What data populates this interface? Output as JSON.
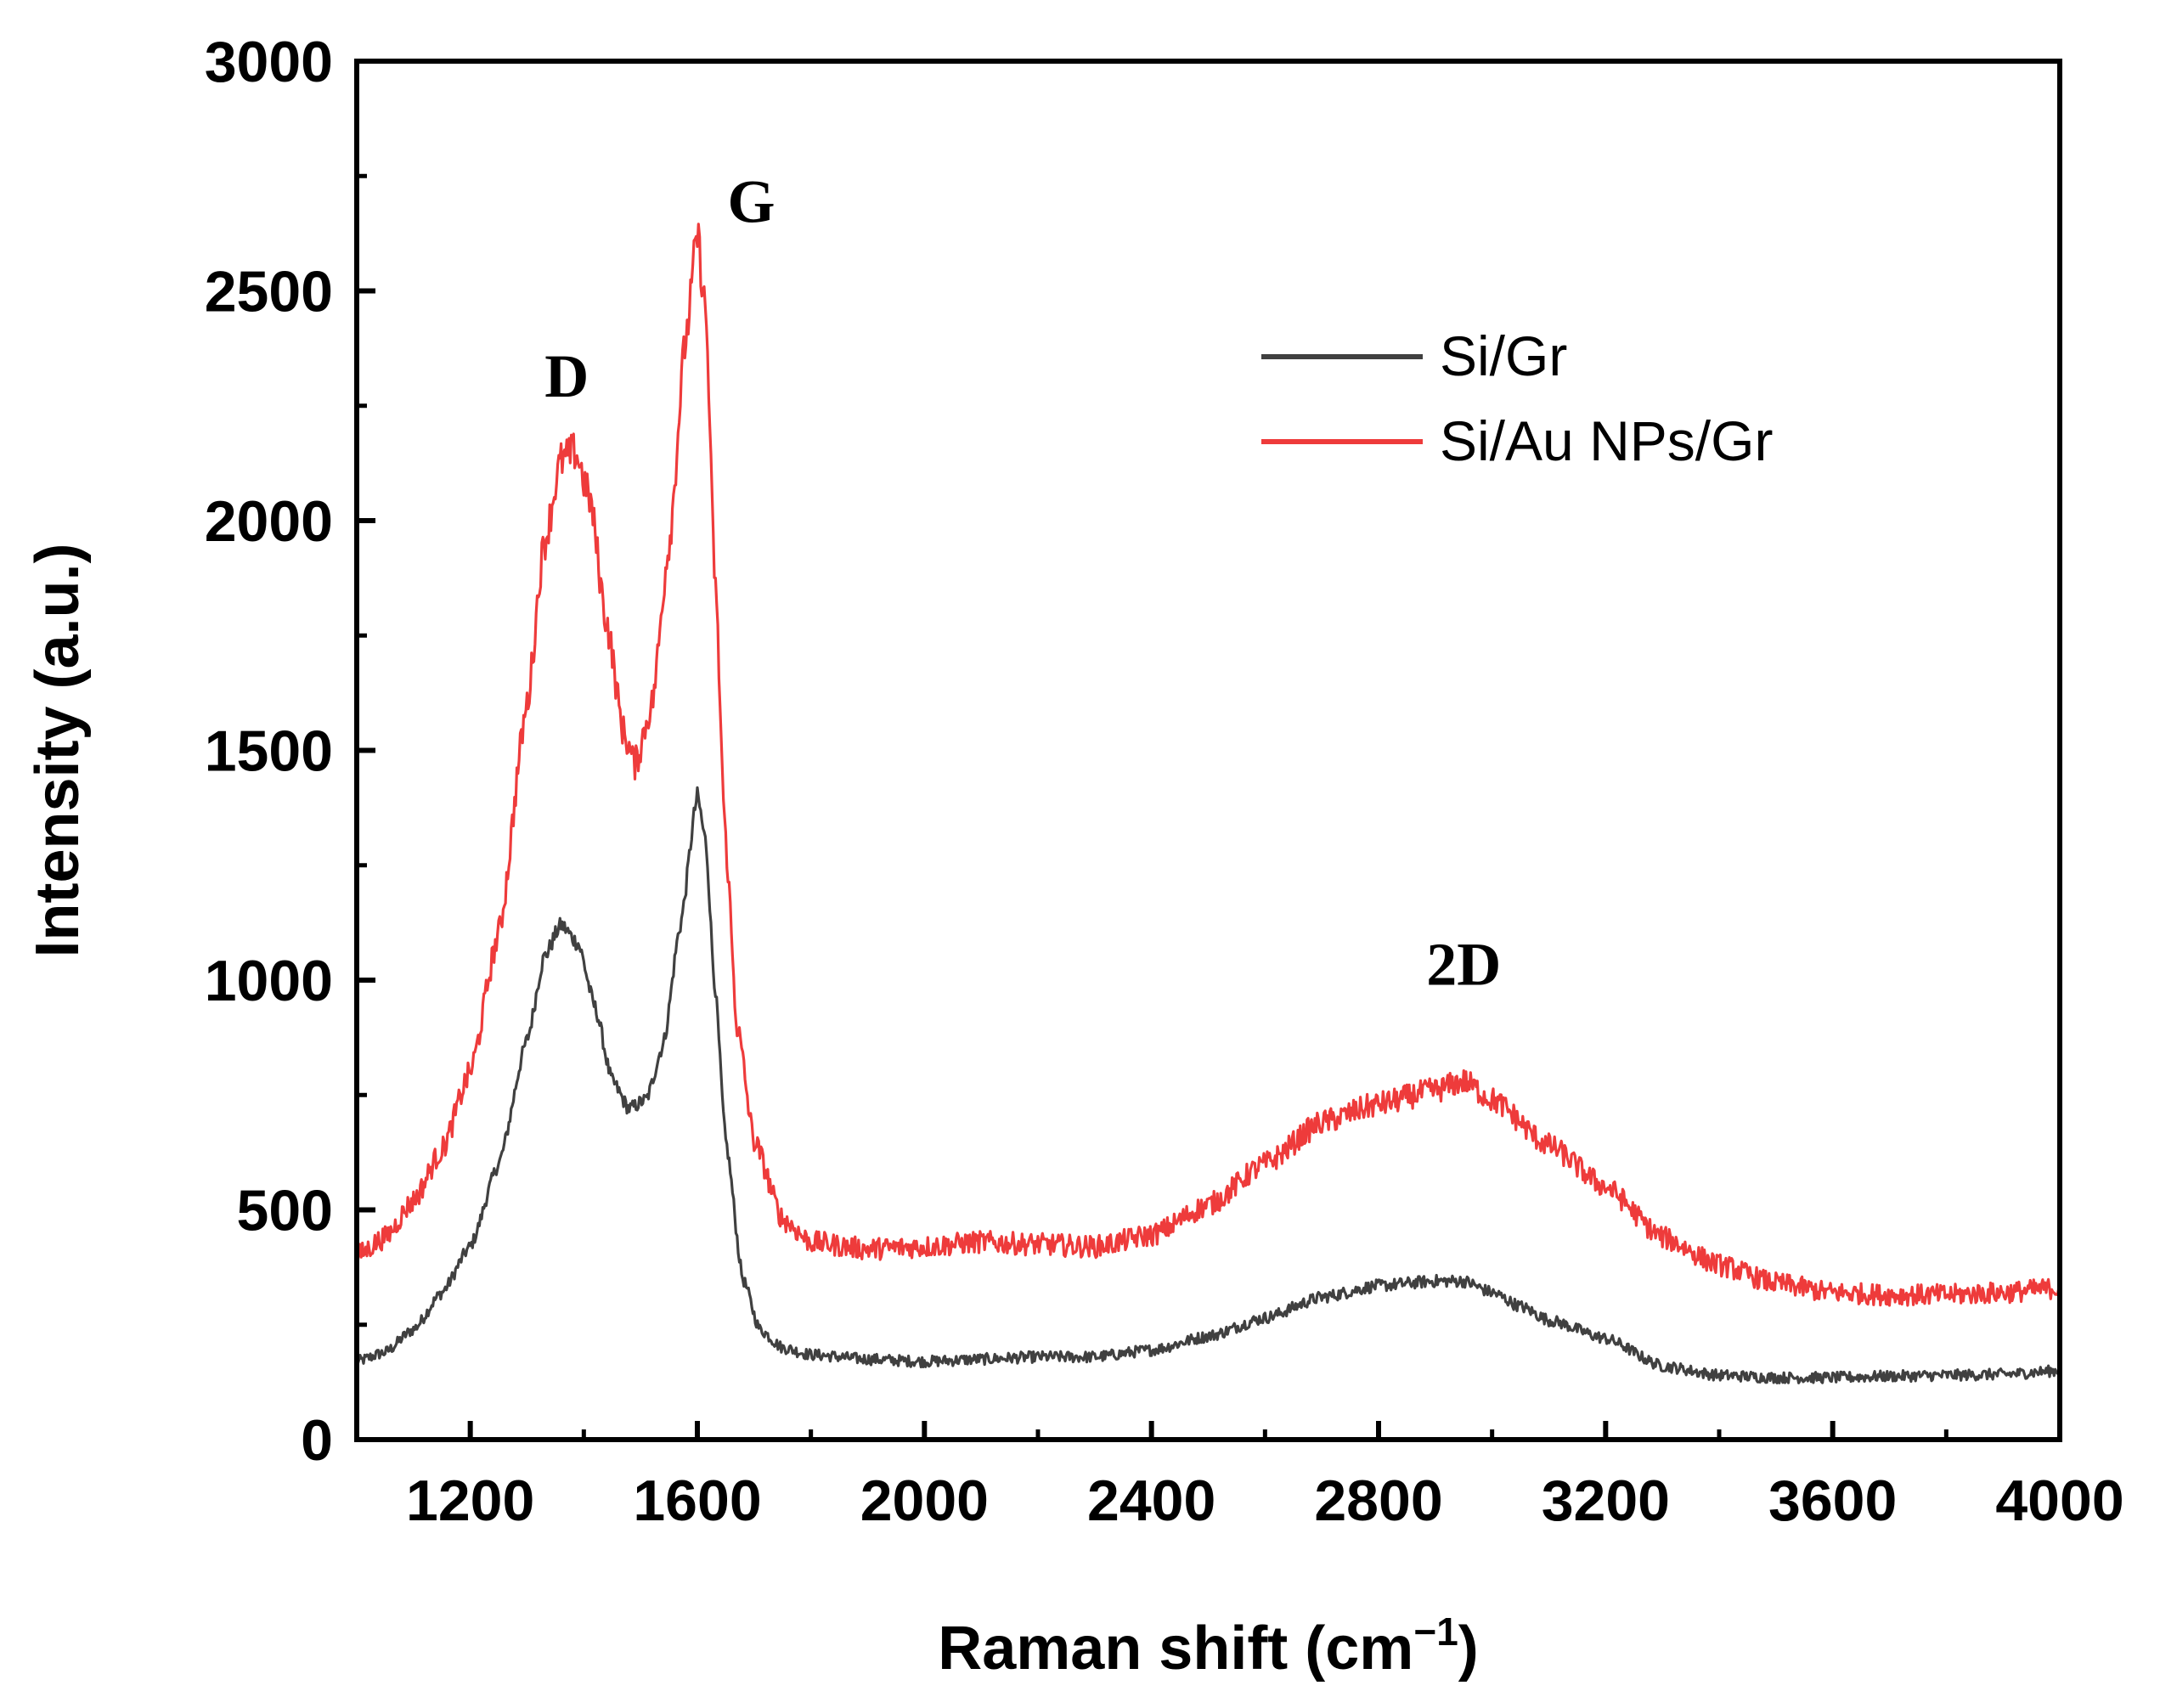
{
  "chart_data": {
    "type": "line",
    "title": "",
    "xlabel": "Raman shift (cm",
    "xlabel_sup": "−1",
    "xlabel_close": ")",
    "ylabel": "Intensity (a.u.)",
    "xlim": [
      1000,
      4000
    ],
    "ylim": [
      0,
      3000
    ],
    "x_ticks": [
      1200,
      1600,
      2000,
      2400,
      2800,
      3200,
      3600,
      4000
    ],
    "y_ticks": [
      0,
      500,
      1000,
      1500,
      2000,
      2500,
      3000
    ],
    "grid": false,
    "legend_position": "top-right",
    "series": [
      {
        "name": "Si/Gr",
        "color": "#404040",
        "points": [
          [
            1000,
            170
          ],
          [
            1050,
            190
          ],
          [
            1100,
            240
          ],
          [
            1150,
            320
          ],
          [
            1200,
            420
          ],
          [
            1250,
            600
          ],
          [
            1300,
            870
          ],
          [
            1330,
            1050
          ],
          [
            1360,
            1120
          ],
          [
            1390,
            1080
          ],
          [
            1420,
            940
          ],
          [
            1450,
            780
          ],
          [
            1480,
            720
          ],
          [
            1510,
            740
          ],
          [
            1540,
            860
          ],
          [
            1570,
            1120
          ],
          [
            1600,
            1400
          ],
          [
            1615,
            1300
          ],
          [
            1630,
            1000
          ],
          [
            1650,
            650
          ],
          [
            1680,
            350
          ],
          [
            1710,
            240
          ],
          [
            1750,
            200
          ],
          [
            1800,
            185
          ],
          [
            1900,
            175
          ],
          [
            2000,
            170
          ],
          [
            2100,
            175
          ],
          [
            2200,
            180
          ],
          [
            2300,
            180
          ],
          [
            2400,
            195
          ],
          [
            2500,
            225
          ],
          [
            2600,
            265
          ],
          [
            2700,
            310
          ],
          [
            2800,
            335
          ],
          [
            2900,
            345
          ],
          [
            2950,
            345
          ],
          [
            3000,
            320
          ],
          [
            3050,
            290
          ],
          [
            3100,
            260
          ],
          [
            3200,
            220
          ],
          [
            3300,
            160
          ],
          [
            3400,
            140
          ],
          [
            3500,
            135
          ],
          [
            3600,
            135
          ],
          [
            3700,
            138
          ],
          [
            3800,
            140
          ],
          [
            3900,
            142
          ],
          [
            4000,
            150
          ]
        ]
      },
      {
        "name": "Si/Au NPs/Gr",
        "color": "#ee3b3b",
        "points": [
          [
            1000,
            400
          ],
          [
            1050,
            440
          ],
          [
            1100,
            520
          ],
          [
            1150,
            630
          ],
          [
            1200,
            800
          ],
          [
            1250,
            1100
          ],
          [
            1300,
            1600
          ],
          [
            1330,
            1950
          ],
          [
            1360,
            2130
          ],
          [
            1385,
            2150
          ],
          [
            1410,
            2050
          ],
          [
            1440,
            1780
          ],
          [
            1470,
            1540
          ],
          [
            1490,
            1470
          ],
          [
            1520,
            1600
          ],
          [
            1550,
            1950
          ],
          [
            1580,
            2400
          ],
          [
            1600,
            2620
          ],
          [
            1615,
            2450
          ],
          [
            1630,
            1900
          ],
          [
            1650,
            1300
          ],
          [
            1670,
            900
          ],
          [
            1700,
            650
          ],
          [
            1750,
            480
          ],
          [
            1800,
            430
          ],
          [
            1900,
            415
          ],
          [
            2000,
            420
          ],
          [
            2100,
            430
          ],
          [
            2200,
            425
          ],
          [
            2300,
            420
          ],
          [
            2400,
            445
          ],
          [
            2500,
            510
          ],
          [
            2600,
            600
          ],
          [
            2700,
            690
          ],
          [
            2800,
            730
          ],
          [
            2900,
            760
          ],
          [
            2950,
            780
          ],
          [
            3000,
            740
          ],
          [
            3100,
            640
          ],
          [
            3200,
            550
          ],
          [
            3300,
            440
          ],
          [
            3400,
            380
          ],
          [
            3500,
            340
          ],
          [
            3600,
            320
          ],
          [
            3700,
            315
          ],
          [
            3800,
            315
          ],
          [
            3900,
            320
          ],
          [
            4000,
            330
          ]
        ]
      }
    ],
    "annotations": [
      {
        "text": "D",
        "x": 1370,
        "y": 2270
      },
      {
        "text": "G",
        "x": 1695,
        "y": 2650
      },
      {
        "text": "2D",
        "x": 2950,
        "y": 990
      }
    ]
  }
}
